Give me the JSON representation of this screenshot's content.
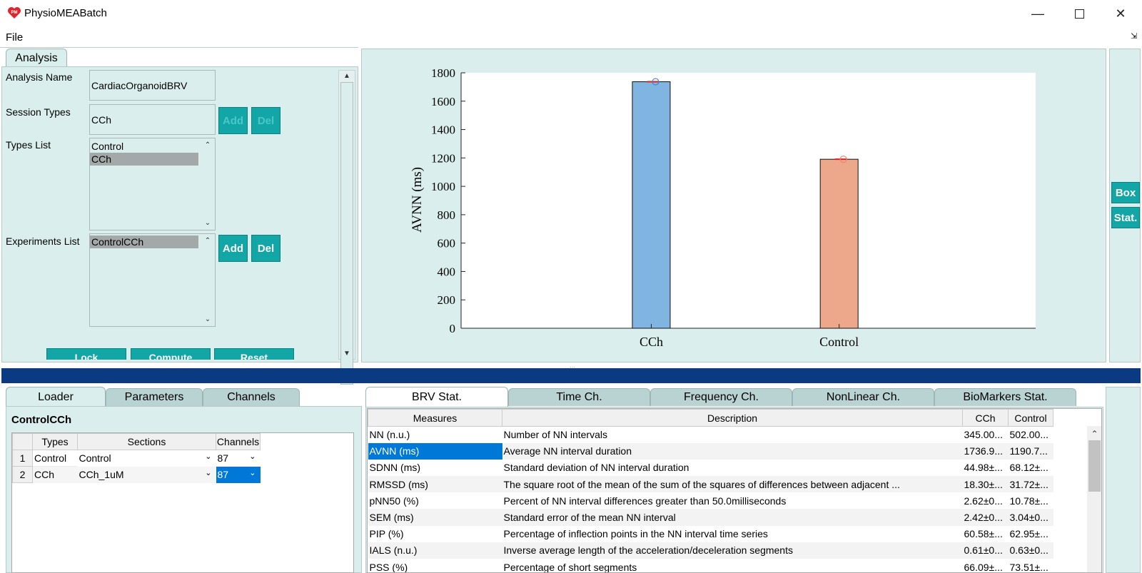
{
  "window": {
    "title": "PhysioMEABatch",
    "icon_text": "PM",
    "minimize_icon": "minimize-icon",
    "maximize_icon": "maximize-icon",
    "close_icon": "close-icon"
  },
  "menu": {
    "file": "File"
  },
  "analysis_panel": {
    "tab_label": "Analysis",
    "analysis_name_label": "Analysis Name",
    "analysis_name_value": "CardiacOrganoidBRV",
    "session_types_label": "Session Types",
    "session_types_value": "CCh",
    "add_label": "Add",
    "del_label": "Del",
    "types_list_label": "Types List",
    "types_list": [
      "Control",
      "CCh"
    ],
    "experiments_list_label": "Experiments List",
    "experiments_list": [
      "ControlCCh"
    ],
    "lock_label": "Lock",
    "compute_label": "Compute",
    "reset_label": "Reset"
  },
  "side_buttons": {
    "box": "Box",
    "stat": "Stat."
  },
  "colors": {
    "teal_panel": "#dbeeee",
    "button_teal": "#12a6a6",
    "header_blue": "#0a3a82",
    "cch_bar": "#7fb5e0",
    "control_bar": "#eda88b",
    "selection_blue": "#0078d7"
  },
  "chart_data": {
    "type": "bar",
    "categories": [
      "CCh",
      "Control"
    ],
    "values": [
      1736.9,
      1190.7
    ],
    "ylabel": "AVNN (ms)",
    "xlabel": "",
    "ylim": [
      0,
      1800
    ],
    "yticks": [
      0,
      200,
      400,
      600,
      800,
      1000,
      1200,
      1400,
      1600,
      1800
    ],
    "colors": [
      "#7fb5e0",
      "#eda88b"
    ],
    "grid": false
  },
  "loader_panel": {
    "tabs": [
      "Loader",
      "Parameters",
      "Channels"
    ],
    "experiment_title": "ControlCCh",
    "columns": [
      "Types",
      "Sections",
      "Channels"
    ],
    "rows": [
      {
        "index": "1",
        "type": "Control",
        "section": "Control",
        "channels": "87"
      },
      {
        "index": "2",
        "type": "CCh",
        "section": "CCh_1uM",
        "channels": "87"
      }
    ]
  },
  "stats_panel": {
    "tabs": [
      "BRV Stat.",
      "Time Ch.",
      "Frequency Ch.",
      "NonLinear Ch.",
      "BioMarkers Stat."
    ],
    "columns": [
      "Measures",
      "Description",
      "CCh",
      "Control"
    ],
    "rows": [
      {
        "measure": "NN (n.u.)",
        "description": "Number of NN intervals",
        "cch": "345.00...",
        "control": "502.00..."
      },
      {
        "measure": "AVNN (ms)",
        "description": "Average NN interval duration",
        "cch": "1736.9...",
        "control": "1190.7..."
      },
      {
        "measure": "SDNN (ms)",
        "description": "Standard deviation of NN interval duration",
        "cch": "44.98±...",
        "control": "68.12±..."
      },
      {
        "measure": "RMSSD (ms)",
        "description": "The square root of the mean of the sum of the squares of differences between adjacent ...",
        "cch": "18.30±...",
        "control": "31.72±..."
      },
      {
        "measure": "pNN50 (%)",
        "description": "Percent of NN interval differences greater than 50.0milliseconds",
        "cch": "2.62±0...",
        "control": "10.78±..."
      },
      {
        "measure": "SEM (ms)",
        "description": "Standard error of the mean NN interval",
        "cch": "2.42±0...",
        "control": "3.04±0..."
      },
      {
        "measure": "PIP (%)",
        "description": "Percentage of inflection points in the NN interval time series",
        "cch": "60.58±...",
        "control": "62.95±..."
      },
      {
        "measure": "IALS (n.u.)",
        "description": "Inverse average length of the acceleration/deceleration segments",
        "cch": "0.61±0...",
        "control": "0.63±0..."
      },
      {
        "measure": "PSS (%)",
        "description": "Percentage of short segments",
        "cch": "66.09±...",
        "control": "73.51±..."
      }
    ]
  }
}
